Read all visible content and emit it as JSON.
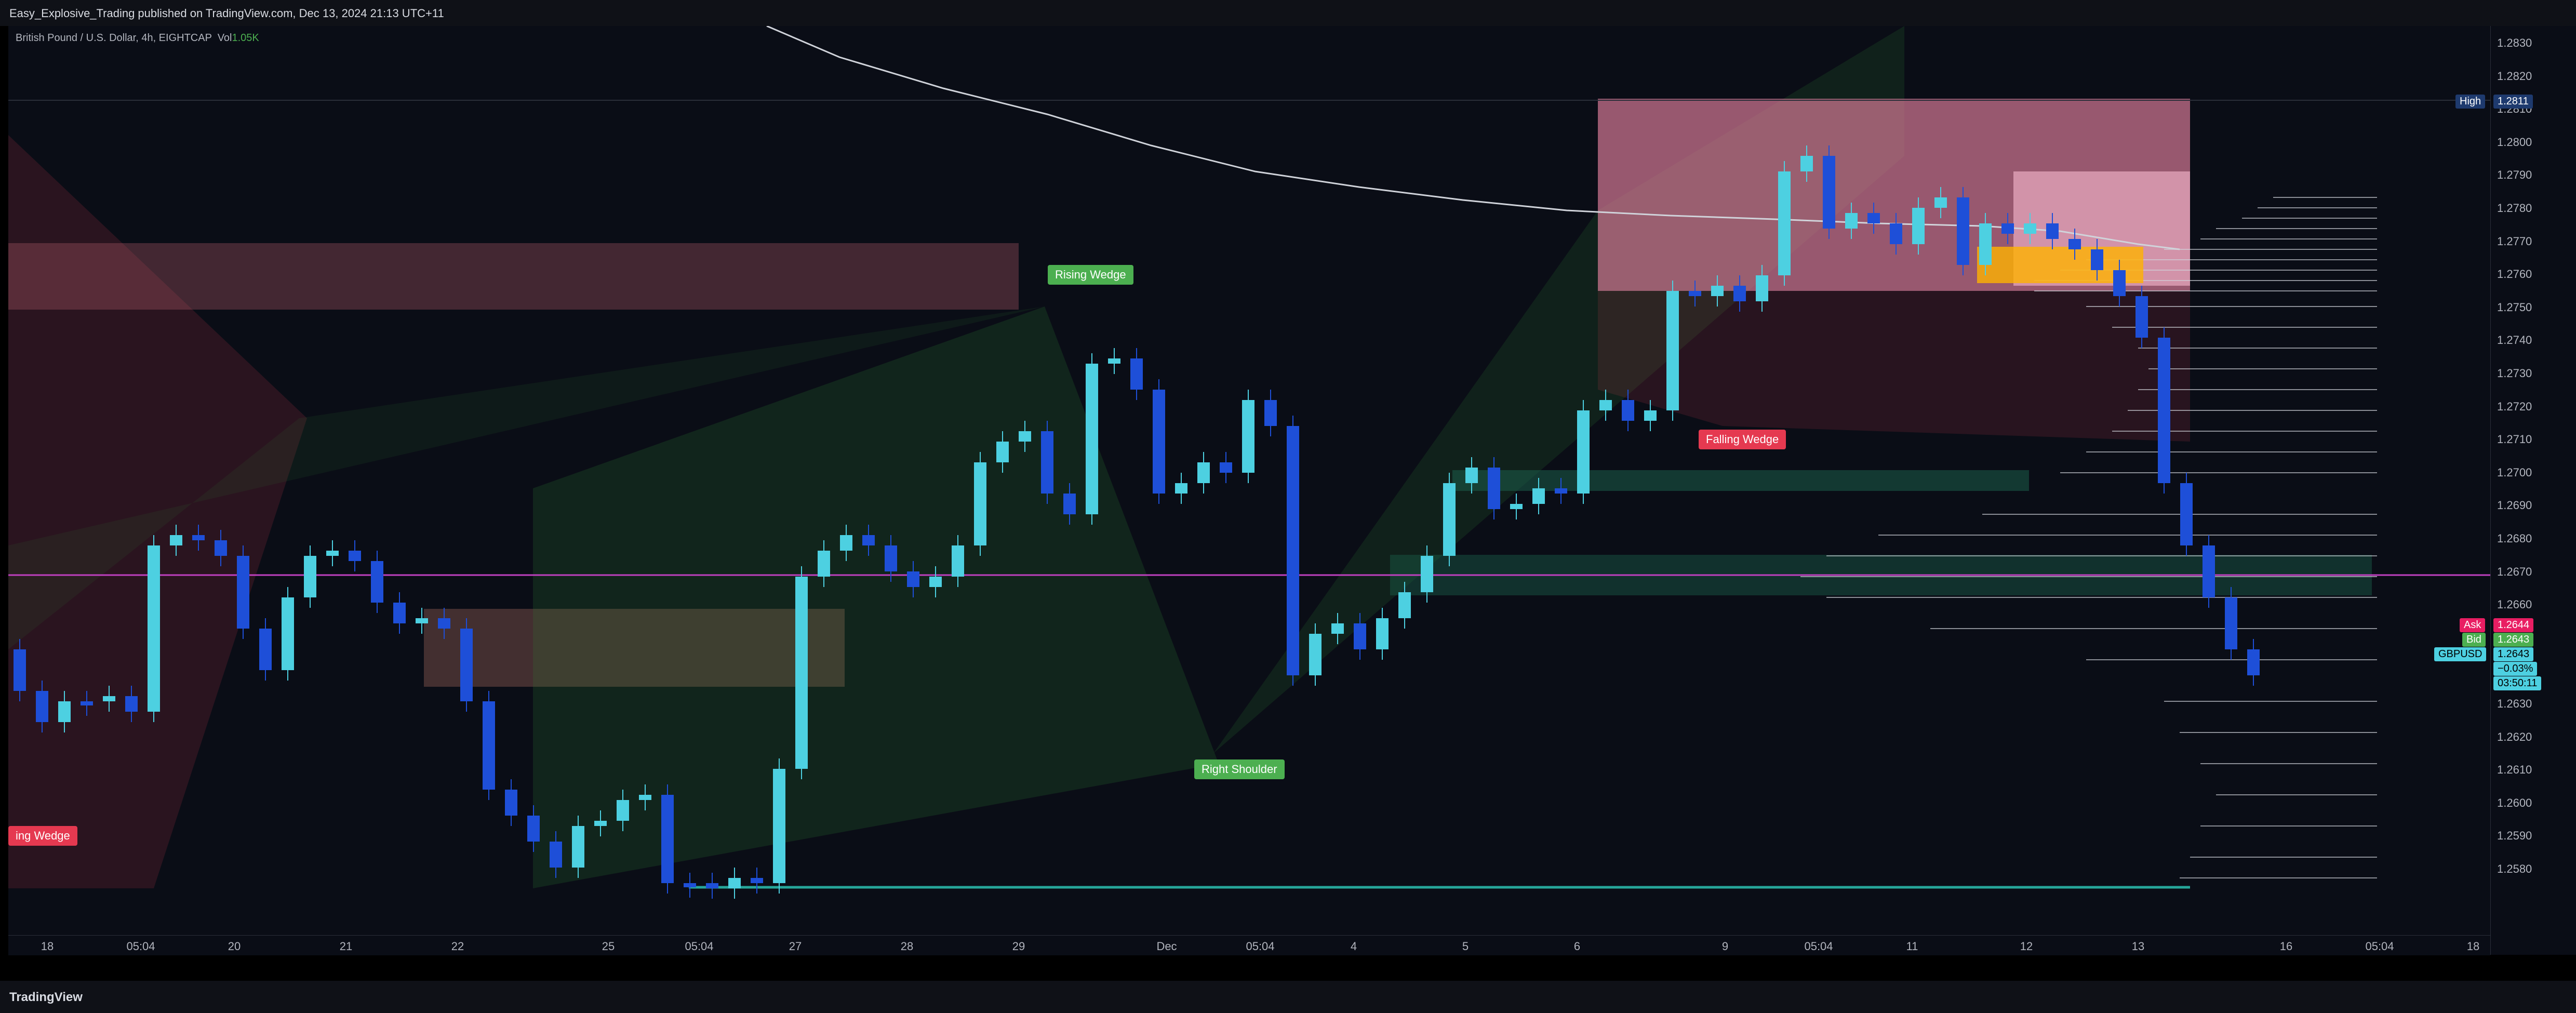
{
  "publisher_line": "Easy_Explosive_Trading published on TradingView.com, Dec 13, 2024 21:13 UTC+11",
  "legend": {
    "symbol": "British Pound / U.S. Dollar, 4h, EIGHTCAP",
    "vol_label": "Vol",
    "vol_value": "1.05K"
  },
  "price_ticks": [
    "1.2830",
    "1.2820",
    "1.2810",
    "1.2800",
    "1.2790",
    "1.2780",
    "1.2770",
    "1.2760",
    "1.2750",
    "1.2740",
    "1.2730",
    "1.2720",
    "1.2710",
    "1.2700",
    "1.2690",
    "1.2680",
    "1.2670",
    "1.2660",
    "1.2650",
    "1.2640",
    "1.2630",
    "1.2620",
    "1.2610",
    "1.2600",
    "1.2590",
    "1.2580"
  ],
  "time_labels": [
    "18",
    "05:04",
    "20",
    "21",
    "22",
    "25",
    "05:04",
    "27",
    "28",
    "29",
    "Dec",
    "05:04",
    "4",
    "5",
    "6",
    "9",
    "05:04",
    "11",
    "12",
    "13",
    "16",
    "05:04",
    "18"
  ],
  "price_labels": {
    "high_label": "High",
    "high_value": "1.2811",
    "ask_label": "Ask",
    "ask_value": "1.2644",
    "bid_label": "Bid",
    "bid_value": "1.2643",
    "symbol_label": "GBPUSD",
    "last_value": "1.2643",
    "change": "−0.03%",
    "countdown": "03:50:11"
  },
  "patterns": {
    "rising_wedge": "Rising Wedge",
    "right_shoulder": "Right Shoulder",
    "falling_wedge": "Falling Wedge",
    "left_wedge": "ing Wedge"
  },
  "footer": {
    "brand": "TradingView"
  },
  "colors": {
    "bull": "#4dd0e1",
    "bear": "#1e4fd8",
    "pink_zone": "#f48fb1",
    "green_label": "#4caf50",
    "red_label": "#e53950",
    "ma_line": "#d0d3da",
    "hline": "#c040c0"
  }
}
